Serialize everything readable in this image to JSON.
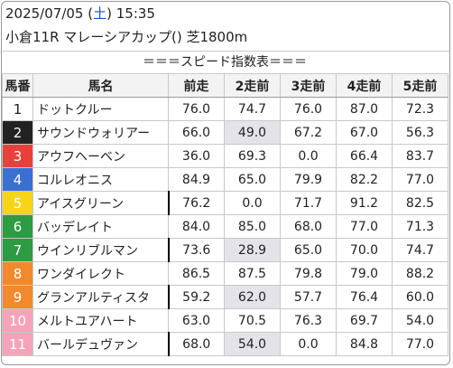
{
  "header": {
    "date": "2025/07/05",
    "weekday": "土",
    "time": "15:35",
    "race": "小倉11R マレーシアカップ() 芝1800m"
  },
  "banner": "＝＝＝スピード指数表＝＝＝",
  "columns": [
    "馬番",
    "馬名",
    "前走",
    "2走前",
    "3走前",
    "4走前",
    "5走前"
  ],
  "rows": [
    {
      "num": "1",
      "name": "ドットクルー",
      "v": [
        "76.0",
        "74.7",
        "76.0",
        "87.0",
        "72.3"
      ],
      "hl": [
        false,
        false,
        false,
        false,
        false
      ],
      "bar": false,
      "color": "white"
    },
    {
      "num": "2",
      "name": "サウンドウォリアー",
      "v": [
        "66.0",
        "49.0",
        "67.2",
        "67.0",
        "56.3"
      ],
      "hl": [
        false,
        true,
        false,
        false,
        false
      ],
      "bar": false,
      "color": "black"
    },
    {
      "num": "3",
      "name": "アウフヘーベン",
      "v": [
        "36.0",
        "69.3",
        "0.0",
        "66.4",
        "83.7"
      ],
      "hl": [
        false,
        false,
        false,
        false,
        false
      ],
      "bar": false,
      "color": "red"
    },
    {
      "num": "4",
      "name": "コルレオニス",
      "v": [
        "84.9",
        "65.0",
        "79.9",
        "82.2",
        "77.0"
      ],
      "hl": [
        false,
        false,
        false,
        false,
        false
      ],
      "bar": false,
      "color": "blue"
    },
    {
      "num": "5",
      "name": "アイスグリーン",
      "v": [
        "76.2",
        "0.0",
        "71.7",
        "91.2",
        "82.5"
      ],
      "hl": [
        false,
        false,
        false,
        false,
        false
      ],
      "bar": true,
      "color": "yellow"
    },
    {
      "num": "6",
      "name": "バッデレイト",
      "v": [
        "84.0",
        "85.0",
        "68.0",
        "77.0",
        "71.3"
      ],
      "hl": [
        false,
        false,
        false,
        false,
        false
      ],
      "bar": false,
      "color": "green"
    },
    {
      "num": "7",
      "name": "ウインリブルマン",
      "v": [
        "73.6",
        "28.9",
        "65.0",
        "70.0",
        "74.7"
      ],
      "hl": [
        false,
        true,
        false,
        false,
        false
      ],
      "bar": true,
      "color": "green"
    },
    {
      "num": "8",
      "name": "ワンダイレクト",
      "v": [
        "86.5",
        "87.5",
        "79.8",
        "79.0",
        "88.2"
      ],
      "hl": [
        false,
        false,
        false,
        false,
        false
      ],
      "bar": false,
      "color": "orange"
    },
    {
      "num": "9",
      "name": "グランアルティスタ",
      "v": [
        "59.2",
        "62.0",
        "57.7",
        "76.4",
        "60.0"
      ],
      "hl": [
        false,
        true,
        false,
        false,
        false
      ],
      "bar": true,
      "color": "orange"
    },
    {
      "num": "10",
      "name": "メルトユアハート",
      "v": [
        "63.0",
        "70.5",
        "76.3",
        "69.7",
        "54.0"
      ],
      "hl": [
        false,
        false,
        false,
        false,
        false
      ],
      "bar": false,
      "color": "pink"
    },
    {
      "num": "11",
      "name": "バールデュヴァン",
      "v": [
        "68.0",
        "54.0",
        "0.0",
        "84.8",
        "77.0"
      ],
      "hl": [
        false,
        true,
        false,
        false,
        false
      ],
      "bar": true,
      "color": "pink"
    }
  ]
}
